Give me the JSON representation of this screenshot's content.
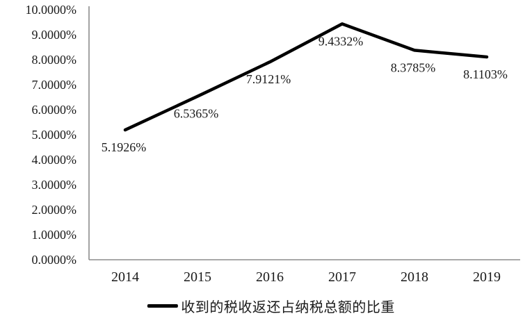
{
  "chart_data": {
    "type": "line",
    "title": "",
    "categories": [
      "2014",
      "2015",
      "2016",
      "2017",
      "2018",
      "2019"
    ],
    "values": [
      5.1926,
      6.5365,
      7.9121,
      9.4332,
      8.3785,
      8.1103
    ],
    "point_labels": [
      "5.1926%",
      "6.5365%",
      "7.9121%",
      "9.4332%",
      "8.3785%",
      "8.1103%"
    ],
    "series_name": "收到的税收返还占纳税总额的比重",
    "xlabel": "",
    "ylabel": "",
    "ylim": [
      0,
      10
    ],
    "y_tick_step": 1,
    "y_tick_labels": [
      "0.0000%",
      "1.0000%",
      "2.0000%",
      "3.0000%",
      "4.0000%",
      "5.0000%",
      "6.0000%",
      "7.0000%",
      "8.0000%",
      "9.0000%",
      "10.0000%"
    ],
    "grid": false,
    "legend_position": "bottom",
    "colors": {
      "series_line": "#000000",
      "axis_line": "#8c8c8c",
      "text": "#1a1a1a",
      "background": "#ffffff"
    }
  },
  "legend": {
    "label": "收到的税收返还占纳税总额的比重"
  }
}
